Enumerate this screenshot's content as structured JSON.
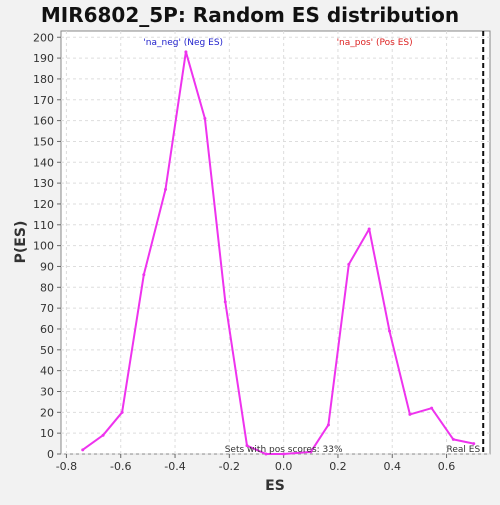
{
  "chart_data": {
    "type": "line",
    "title": "MIR6802_5P: Random ES distribution",
    "xlabel": "ES",
    "ylabel": "P(ES)",
    "xlim": [
      -0.82,
      0.76
    ],
    "ylim": [
      0,
      203
    ],
    "x_ticks": [
      -0.8,
      -0.6,
      -0.4,
      -0.2,
      0.0,
      0.2,
      0.4,
      0.6
    ],
    "x_tick_labels": [
      "-0.8",
      "-0.6",
      "-0.4",
      "-0.2",
      "0.0",
      "0.2",
      "0.4",
      "0.6"
    ],
    "y_ticks": [
      0,
      10,
      20,
      30,
      40,
      50,
      60,
      70,
      80,
      90,
      100,
      110,
      120,
      130,
      140,
      150,
      160,
      170,
      180,
      190,
      200
    ],
    "grid": true,
    "series": [
      {
        "color": "#ee33ee",
        "x": [
          -0.74,
          -0.665,
          -0.595,
          -0.515,
          -0.435,
          -0.36,
          -0.29,
          -0.215,
          -0.135,
          -0.065,
          0.0,
          0.1,
          0.165,
          0.24,
          0.315,
          0.39,
          0.465,
          0.545,
          0.625,
          0.7
        ],
        "y": [
          2,
          9,
          20,
          86,
          127,
          193,
          161,
          73,
          4,
          0,
          0,
          1,
          14,
          91,
          108,
          59,
          19,
          22,
          7,
          5
        ]
      }
    ],
    "real_es": {
      "x": 0.735,
      "label": "Real ES"
    },
    "annotations": [
      {
        "text": "'na_neg' (Neg ES)",
        "color": "#2222cc",
        "anchor": "neg"
      },
      {
        "text": "'na_pos' (Pos ES)",
        "color": "#dd2222",
        "anchor": "pos"
      },
      {
        "text": "Sets with pos scores: 33%",
        "color": "#333333",
        "anchor": "bottom"
      }
    ]
  }
}
